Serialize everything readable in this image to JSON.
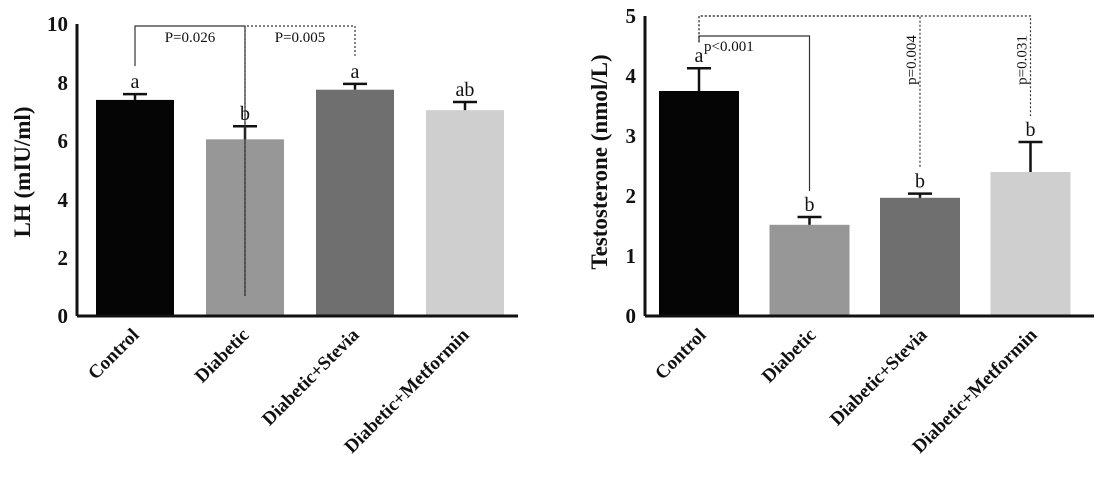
{
  "chart_data": [
    {
      "type": "bar",
      "ylabel": "LH (mIU/ml)",
      "ylim": [
        0,
        10
      ],
      "yticks": [
        "0",
        "2",
        "4",
        "6",
        "8",
        "10"
      ],
      "categories": [
        "Control",
        "Diabetic",
        "Diabetic+Stevia",
        "Diabetic+Metformin"
      ],
      "values": [
        7.4,
        6.05,
        7.75,
        7.05
      ],
      "errors": [
        0.2,
        0.45,
        0.2,
        0.28
      ],
      "colors": [
        "#050505",
        "#979797",
        "#6f6f6f",
        "#cfcfcf"
      ],
      "letters": [
        "a",
        "b",
        "a",
        "ab"
      ],
      "comparisons": [
        {
          "from": 0,
          "to": 1,
          "label": "P=0.026",
          "style": "solid"
        },
        {
          "from": 1,
          "to": 2,
          "label": "P=0.005",
          "style": "dotted"
        }
      ]
    },
    {
      "type": "bar",
      "ylabel": "Testosterone (nmol/L)",
      "ylim": [
        0,
        5
      ],
      "yticks": [
        "0",
        "1",
        "2",
        "3",
        "4",
        "5"
      ],
      "categories": [
        "Control",
        "Diabetic",
        "Diabetic+Stevia",
        "Diabetic+Metformin"
      ],
      "values": [
        3.75,
        1.52,
        1.97,
        2.4
      ],
      "errors": [
        0.38,
        0.13,
        0.07,
        0.5
      ],
      "colors": [
        "#050505",
        "#979797",
        "#6f6f6f",
        "#cfcfcf"
      ],
      "letters": [
        "a",
        "b",
        "b",
        "b"
      ],
      "comparisons": [
        {
          "from": 0,
          "to": 1,
          "label": "p<0.001",
          "style": "solid"
        },
        {
          "from": 0,
          "to": 2,
          "label": "p=0.004",
          "style": "dotted"
        },
        {
          "from": 0,
          "to": 3,
          "label": "p=0.031",
          "style": "dotted"
        }
      ]
    }
  ]
}
